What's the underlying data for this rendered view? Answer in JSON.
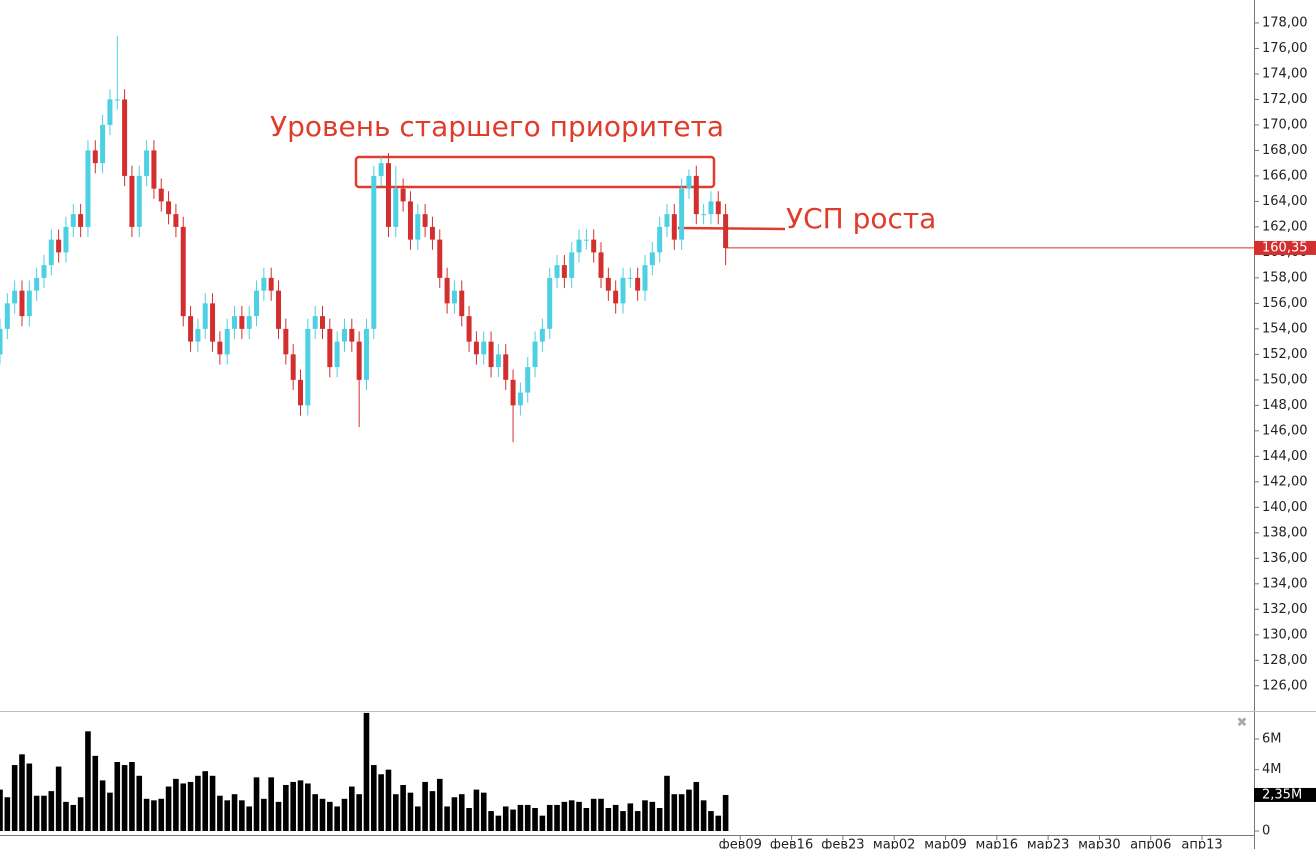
{
  "chart_data": {
    "type": "candlestick",
    "annotations": [
      "Уровень старшего приоритета",
      "УСП роста"
    ],
    "xlim": [
      0,
      171.5
    ],
    "xticks": [
      {
        "value": 101,
        "label": "фев09"
      },
      {
        "value": 108,
        "label": "фев16"
      },
      {
        "value": 115,
        "label": "фев23"
      },
      {
        "value": 122,
        "label": "мар02"
      },
      {
        "value": 129,
        "label": "мар09"
      },
      {
        "value": 136,
        "label": "мар16"
      },
      {
        "value": 143,
        "label": "мар23"
      },
      {
        "value": 150,
        "label": "мар30"
      },
      {
        "value": 157,
        "label": "апр06"
      },
      {
        "value": 164,
        "label": "апр13"
      }
    ],
    "ylim": [
      124.1,
      179.8
    ],
    "yticks": [
      {
        "value": 126,
        "label": "126,00"
      },
      {
        "value": 128,
        "label": "128,00"
      },
      {
        "value": 130,
        "label": "130,00"
      },
      {
        "value": 132,
        "label": "132,00"
      },
      {
        "value": 134,
        "label": "134,00"
      },
      {
        "value": 136,
        "label": "136,00"
      },
      {
        "value": 138,
        "label": "138,00"
      },
      {
        "value": 140,
        "label": "140,00"
      },
      {
        "value": 142,
        "label": "142,00"
      },
      {
        "value": 144,
        "label": "144,00"
      },
      {
        "value": 146,
        "label": "146,00"
      },
      {
        "value": 148,
        "label": "148,00"
      },
      {
        "value": 150,
        "label": "150,00"
      },
      {
        "value": 152,
        "label": "152,00"
      },
      {
        "value": 154,
        "label": "154,00"
      },
      {
        "value": 156,
        "label": "156,00"
      },
      {
        "value": 158,
        "label": "158,00"
      },
      {
        "value": 160,
        "label": "160,00"
      },
      {
        "value": 162,
        "label": "162,00"
      },
      {
        "value": 164,
        "label": "164,00"
      },
      {
        "value": 166,
        "label": "166,00"
      },
      {
        "value": 168,
        "label": "168,00"
      },
      {
        "value": 170,
        "label": "170,00"
      },
      {
        "value": 172,
        "label": "172,00"
      },
      {
        "value": 174,
        "label": "174,00"
      },
      {
        "value": 176,
        "label": "176,00"
      },
      {
        "value": 178,
        "label": "178,00"
      }
    ],
    "up_color": "#4dd0e1",
    "down_color": "#d32f2f",
    "last_price": {
      "value": 160.35,
      "label": "160,35"
    },
    "series": {
      "open": [
        152,
        154,
        156,
        157,
        155,
        157,
        158,
        159,
        161,
        160,
        162,
        163,
        162,
        168,
        167,
        170,
        172,
        172,
        166,
        162,
        166,
        168,
        165,
        164,
        163,
        162,
        155,
        153,
        154,
        156,
        153,
        152,
        154,
        155,
        154,
        155,
        157,
        158,
        157,
        154,
        152,
        150,
        148,
        154,
        155,
        154,
        151,
        153,
        154,
        153,
        150,
        154,
        166,
        167,
        162,
        165,
        164,
        161,
        163,
        162,
        161,
        158,
        156,
        157,
        155,
        153,
        152,
        153,
        151,
        152,
        150,
        148,
        149,
        151,
        153,
        154,
        158,
        159,
        158,
        160,
        161,
        161,
        160,
        158,
        157,
        156,
        158,
        158,
        157,
        159,
        160,
        162,
        163,
        161,
        165,
        166,
        163,
        163,
        164,
        163
      ],
      "high": [
        154.8,
        156.8,
        157.8,
        157.8,
        157.8,
        158.8,
        159.8,
        161.8,
        161.8,
        162.8,
        163.8,
        163.8,
        168.8,
        168.8,
        170.8,
        172.8,
        177,
        172.8,
        166.8,
        166.8,
        168.8,
        168.8,
        165.8,
        164.8,
        163.8,
        162.8,
        155.8,
        154.8,
        156.8,
        156.8,
        153.8,
        154.8,
        155.8,
        155.8,
        155.8,
        157.8,
        158.8,
        158.8,
        157.8,
        154.8,
        152.8,
        150.8,
        154.8,
        155.8,
        155.8,
        154.8,
        153.8,
        154.8,
        154.8,
        153.8,
        154.8,
        166.8,
        167.5,
        167.8,
        166.8,
        165.8,
        164.8,
        163.8,
        163.8,
        162.8,
        161.8,
        158.8,
        157.8,
        157.8,
        155.8,
        153.8,
        153.8,
        153.8,
        152.8,
        152.8,
        150.8,
        149.8,
        151.8,
        153.8,
        154.8,
        158.8,
        159.8,
        159.8,
        160.8,
        161.8,
        161.8,
        161.8,
        160.8,
        158.8,
        157.8,
        158.8,
        158.8,
        158.8,
        159.8,
        160.8,
        162.8,
        163.8,
        163.8,
        165.8,
        166.5,
        166.8,
        163.8,
        164.8,
        164.8,
        163.8
      ],
      "low": [
        151.2,
        153.2,
        155.2,
        154.2,
        154.2,
        156.2,
        157.2,
        158.2,
        159.2,
        159.2,
        161.2,
        161.2,
        161.2,
        166.2,
        166.2,
        169.2,
        171.2,
        165.2,
        161.2,
        161.2,
        165.2,
        164.2,
        163.2,
        162.2,
        161.2,
        154.2,
        152.2,
        152.2,
        153.2,
        152.2,
        151.2,
        151.2,
        153.2,
        153.2,
        153.2,
        154.2,
        156.2,
        156.2,
        153.2,
        151.2,
        149.2,
        147.2,
        147.2,
        153.2,
        153.2,
        150.2,
        150.2,
        152.2,
        152.2,
        146.3,
        149.2,
        153.2,
        165.2,
        161.2,
        161.2,
        163.2,
        160.2,
        160.2,
        161.2,
        160.2,
        157.2,
        155.2,
        155.2,
        154.2,
        152.2,
        151.2,
        151.2,
        150.2,
        150.2,
        149.2,
        145.1,
        147.2,
        148.2,
        150.2,
        152.2,
        153.2,
        157.2,
        157.2,
        157.2,
        159.2,
        160.2,
        159.2,
        157.2,
        156.2,
        155.2,
        155.2,
        157.2,
        156.2,
        156.2,
        158.2,
        159.2,
        161.2,
        160.2,
        160.2,
        164.2,
        162.2,
        162.2,
        162.2,
        162.2,
        159
      ],
      "close": [
        154,
        156,
        157,
        155,
        157,
        158,
        159,
        161,
        160,
        162,
        163,
        162,
        168,
        167,
        170,
        172,
        172,
        166,
        162,
        166,
        168,
        165,
        164,
        163,
        162,
        155,
        153,
        154,
        156,
        153,
        152,
        154,
        155,
        154,
        155,
        157,
        158,
        157,
        154,
        152,
        150,
        148,
        154,
        155,
        154,
        151,
        153,
        154,
        153,
        150,
        154,
        166,
        167,
        162,
        165,
        164,
        161,
        163,
        162,
        161,
        158,
        156,
        157,
        155,
        153,
        152,
        153,
        151,
        152,
        150,
        148,
        149,
        151,
        153,
        154,
        158,
        159,
        158,
        160,
        161,
        161,
        160,
        158,
        157,
        156,
        158,
        158,
        157,
        159,
        160,
        162,
        163,
        161,
        165,
        166,
        163,
        163,
        164,
        163,
        160.35
      ]
    },
    "volume": {
      "color": "#000000",
      "ylim": [
        0,
        7760000
      ],
      "yticks": [
        {
          "value": 0,
          "label": "0"
        },
        {
          "value": 4000000,
          "label": "4M"
        },
        {
          "value": 6000000,
          "label": "6M"
        }
      ],
      "last": {
        "value": 2350000,
        "label": "2,35M"
      },
      "values": [
        2700000,
        2200000,
        4300000,
        5000000,
        4400000,
        2300000,
        2300000,
        2600000,
        4200000,
        1900000,
        1700000,
        2200000,
        6500000,
        4900000,
        3300000,
        2500000,
        4500000,
        4300000,
        4500000,
        3600000,
        2100000,
        2000000,
        2100000,
        2900000,
        3400000,
        3100000,
        3200000,
        3600000,
        3900000,
        3600000,
        2300000,
        2000000,
        2400000,
        2000000,
        1600000,
        3500000,
        2100000,
        3500000,
        1900000,
        3000000,
        3200000,
        3300000,
        3100000,
        2400000,
        2100000,
        1900000,
        1600000,
        2100000,
        2900000,
        2400000,
        7700000,
        4300000,
        3700000,
        4000000,
        2400000,
        3000000,
        2500000,
        1600000,
        3200000,
        2600000,
        3400000,
        1600000,
        2200000,
        2400000,
        1500000,
        2700000,
        2500000,
        1300000,
        1000000,
        1600000,
        1400000,
        1700000,
        1700000,
        1500000,
        1000000,
        1700000,
        1700000,
        1900000,
        2000000,
        1900000,
        1500000,
        2100000,
        2100000,
        1500000,
        1700000,
        1300000,
        1800000,
        1300000,
        2000000,
        1900000,
        1500000,
        3600000,
        2400000,
        2400000,
        2700000,
        3200000,
        2000000,
        1300000,
        1000000,
        2350000
      ]
    }
  }
}
